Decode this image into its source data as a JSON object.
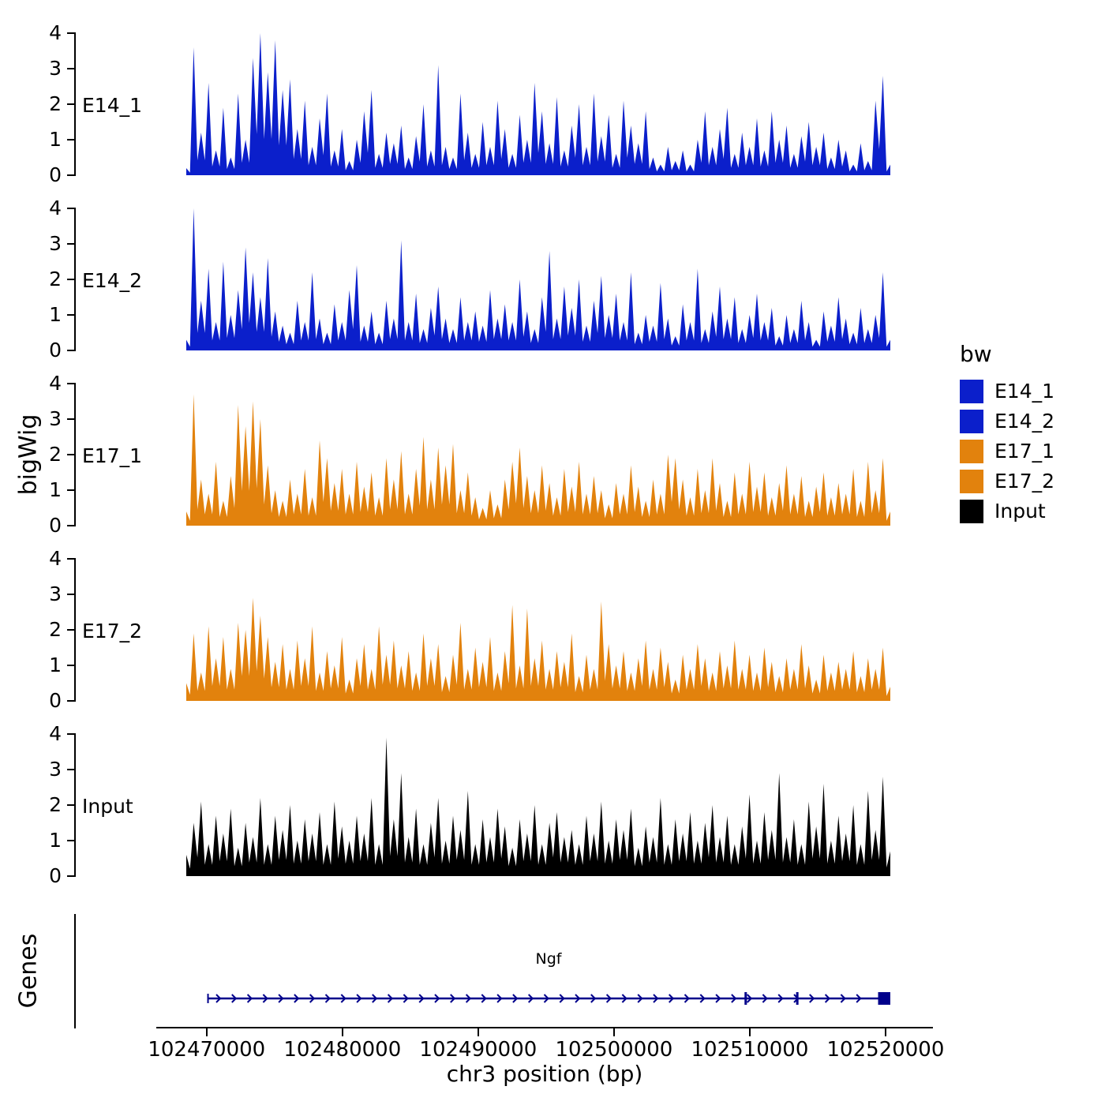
{
  "figure": {
    "genes_panel_label": "Genes"
  },
  "legend": {
    "title": "bw",
    "entries": [
      {
        "label": "E14_1",
        "color": "#0B1FCB"
      },
      {
        "label": "E14_2",
        "color": "#0B1FCB"
      },
      {
        "label": "E17_1",
        "color": "#E2820D"
      },
      {
        "label": "E17_2",
        "color": "#E2820D"
      },
      {
        "label": "Input",
        "color": "#000000"
      }
    ]
  },
  "chart_data": {
    "type": "area",
    "title": "",
    "xlabel": "chr3 position (bp)",
    "ylabel": "bigWig",
    "x_range_bp": [
      102468500,
      102520350
    ],
    "x_ticks": [
      102470000,
      102480000,
      102490000,
      102500000,
      102510000,
      102520000
    ],
    "y_ticks": [
      0,
      1,
      2,
      3,
      4
    ],
    "ylim": [
      0,
      4
    ],
    "grid": false,
    "legend_position": "right",
    "tracks": [
      {
        "name": "E14_1",
        "color": "#0B1FCB",
        "values": [
          0.2,
          3.6,
          1.2,
          2.6,
          0.7,
          1.9,
          0.5,
          2.3,
          1.0,
          3.3,
          4.0,
          2.9,
          3.8,
          2.4,
          2.7,
          1.3,
          2.1,
          0.8,
          1.6,
          2.3,
          0.7,
          1.3,
          0.4,
          1.0,
          1.8,
          2.4,
          0.6,
          1.2,
          0.9,
          1.4,
          0.5,
          1.1,
          2.0,
          0.7,
          3.1,
          0.8,
          0.5,
          2.3,
          1.2,
          0.6,
          1.5,
          0.8,
          2.1,
          1.3,
          0.6,
          1.7,
          1.0,
          2.6,
          1.8,
          0.9,
          2.2,
          0.7,
          1.4,
          2.0,
          0.8,
          2.3,
          1.1,
          1.7,
          0.6,
          2.1,
          1.4,
          0.9,
          1.8,
          0.5,
          0.3,
          0.8,
          0.4,
          0.7,
          0.3,
          1.0,
          1.8,
          0.8,
          1.3,
          1.9,
          0.6,
          1.2,
          0.8,
          1.6,
          0.7,
          1.8,
          1.0,
          1.4,
          0.6,
          1.1,
          1.5,
          0.8,
          1.2,
          0.5,
          1.0,
          0.7,
          0.3,
          0.9,
          0.4,
          2.1,
          2.8,
          0.3
        ]
      },
      {
        "name": "E14_2",
        "color": "#0B1FCB",
        "values": [
          0.3,
          4.0,
          1.4,
          2.3,
          0.8,
          2.5,
          1.0,
          1.7,
          2.9,
          2.2,
          1.5,
          2.6,
          1.1,
          0.7,
          0.5,
          1.4,
          0.8,
          2.2,
          0.9,
          0.5,
          1.3,
          0.8,
          1.7,
          2.4,
          0.7,
          1.1,
          0.5,
          1.4,
          0.9,
          3.1,
          0.8,
          1.6,
          0.6,
          1.2,
          1.8,
          0.9,
          0.6,
          1.5,
          0.8,
          1.1,
          0.7,
          1.7,
          0.9,
          1.3,
          0.8,
          2.0,
          1.1,
          0.6,
          1.5,
          2.8,
          0.9,
          1.8,
          1.2,
          2.0,
          0.7,
          1.4,
          2.1,
          1.0,
          1.6,
          0.8,
          2.2,
          0.5,
          1.0,
          0.7,
          1.9,
          0.9,
          0.4,
          1.3,
          0.8,
          2.3,
          0.6,
          1.1,
          1.8,
          0.9,
          1.5,
          0.6,
          1.0,
          1.6,
          0.8,
          1.2,
          0.4,
          1.0,
          0.6,
          1.4,
          0.8,
          0.3,
          1.1,
          0.7,
          1.5,
          0.9,
          0.5,
          1.2,
          0.6,
          1.0,
          2.2,
          0.3
        ]
      },
      {
        "name": "E17_1",
        "color": "#E2820D",
        "values": [
          0.4,
          3.7,
          1.3,
          0.9,
          1.8,
          0.7,
          1.4,
          3.4,
          2.8,
          3.5,
          3.0,
          1.7,
          1.0,
          0.7,
          1.3,
          0.9,
          1.6,
          0.8,
          2.4,
          1.9,
          1.2,
          1.6,
          0.9,
          1.8,
          1.1,
          1.5,
          0.8,
          1.9,
          1.3,
          2.1,
          0.9,
          1.6,
          2.5,
          1.3,
          2.2,
          1.7,
          2.3,
          1.0,
          1.5,
          0.8,
          0.5,
          1.0,
          0.6,
          1.3,
          1.8,
          2.2,
          1.4,
          1.0,
          1.7,
          1.2,
          0.8,
          1.6,
          1.1,
          1.8,
          0.9,
          1.4,
          1.0,
          0.6,
          1.2,
          0.9,
          1.7,
          1.1,
          0.7,
          1.3,
          0.9,
          2.0,
          1.9,
          1.3,
          0.8,
          1.6,
          1.0,
          1.9,
          1.2,
          0.7,
          1.5,
          0.9,
          1.8,
          1.1,
          1.5,
          0.8,
          1.2,
          1.7,
          0.9,
          1.4,
          0.7,
          1.1,
          1.5,
          0.8,
          1.2,
          0.9,
          1.6,
          0.7,
          1.8,
          1.0,
          1.9,
          0.4
        ]
      },
      {
        "name": "E17_2",
        "color": "#E2820D",
        "values": [
          0.5,
          1.9,
          0.8,
          2.1,
          1.2,
          1.8,
          0.9,
          2.2,
          2.0,
          2.9,
          2.4,
          1.8,
          1.1,
          1.6,
          0.9,
          1.7,
          1.2,
          2.1,
          0.8,
          1.4,
          1.0,
          1.8,
          0.6,
          1.2,
          1.6,
          0.9,
          2.1,
          1.3,
          1.7,
          1.0,
          1.4,
          0.8,
          1.9,
          1.2,
          1.6,
          0.7,
          1.3,
          2.2,
          0.9,
          1.5,
          1.1,
          1.8,
          0.8,
          1.4,
          2.7,
          1.0,
          2.6,
          1.2,
          1.7,
          0.9,
          1.4,
          1.1,
          1.9,
          0.7,
          1.3,
          0.9,
          2.8,
          1.6,
          1.0,
          1.4,
          0.8,
          1.2,
          1.7,
          0.9,
          1.5,
          1.1,
          0.6,
          1.3,
          0.9,
          1.6,
          1.2,
          0.8,
          1.4,
          1.0,
          1.7,
          0.9,
          1.3,
          0.8,
          1.5,
          1.1,
          0.7,
          1.2,
          0.9,
          1.6,
          1.0,
          0.6,
          1.3,
          0.8,
          1.1,
          0.9,
          1.4,
          0.7,
          1.2,
          0.9,
          1.5,
          0.4
        ]
      },
      {
        "name": "Input",
        "color": "#000000",
        "values": [
          0.6,
          1.5,
          2.1,
          0.9,
          1.7,
          1.2,
          1.9,
          0.8,
          1.5,
          1.1,
          2.2,
          0.9,
          1.7,
          1.3,
          2.0,
          1.0,
          1.6,
          1.2,
          1.8,
          0.9,
          2.1,
          1.4,
          1.0,
          1.7,
          1.2,
          2.2,
          0.9,
          3.9,
          1.6,
          2.9,
          1.1,
          1.9,
          0.9,
          1.5,
          2.2,
          1.0,
          1.7,
          1.3,
          2.4,
          0.9,
          1.6,
          1.1,
          1.9,
          1.4,
          0.8,
          1.6,
          1.2,
          2.0,
          0.9,
          1.5,
          1.8,
          1.1,
          1.3,
          0.9,
          1.7,
          1.2,
          2.1,
          1.0,
          1.6,
          1.3,
          1.9,
          0.8,
          1.4,
          1.1,
          2.2,
          0.9,
          1.6,
          1.2,
          1.8,
          1.0,
          1.5,
          2.0,
          1.1,
          1.7,
          0.9,
          1.4,
          2.3,
          1.0,
          1.8,
          1.3,
          2.9,
          1.1,
          1.6,
          0.9,
          2.1,
          1.4,
          2.6,
          1.0,
          1.7,
          1.2,
          2.0,
          0.9,
          2.4,
          1.3,
          2.8,
          0.7
        ]
      }
    ],
    "gene_track": {
      "name": "Ngf",
      "color": "#00008B",
      "strand": "+",
      "start_bp": 102470100,
      "end_bp": 102520350,
      "exon_marks_bp": [
        102509700,
        102513500
      ],
      "end_box_bp": [
        102519450,
        102520350
      ]
    }
  }
}
